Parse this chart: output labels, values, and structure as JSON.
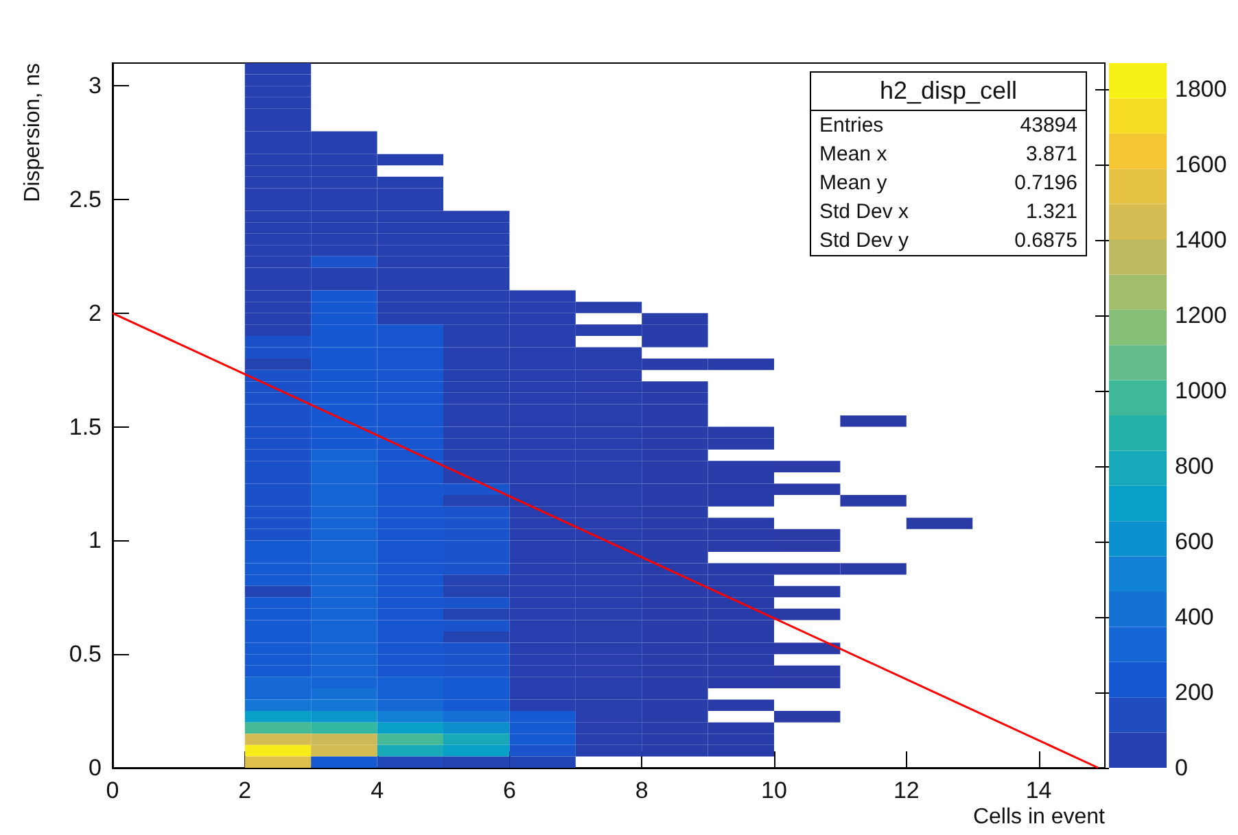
{
  "chart_data": {
    "type": "heatmap",
    "title": "h2_disp_cell",
    "xlabel": "Cells in event",
    "ylabel": "Dispersion, ns",
    "annotations": [
      "Entries 43894",
      "Mean x 3.871",
      "Mean y 0.7196",
      "Std Dev x 1.321",
      "Std Dev y 0.6875"
    ],
    "xlim": [
      0,
      15
    ],
    "xticks": [
      0,
      2,
      4,
      6,
      8,
      10,
      12,
      14
    ],
    "ylim": [
      0,
      3.1
    ],
    "yticks": [
      0,
      0.5,
      1,
      1.5,
      2,
      2.5,
      3
    ],
    "clim": [
      0,
      1870
    ],
    "cticks": [
      0,
      200,
      400,
      600,
      800,
      1000,
      1200,
      1400,
      1600,
      1800
    ],
    "x": [
      2.5,
      3.5,
      4.5,
      5.5,
      6.5,
      7.5,
      8.5,
      9.5,
      10.5,
      11.5,
      12.5
    ],
    "cells": [
      [
        50,
        null,
        null,
        null,
        null,
        null,
        null,
        null,
        null,
        null,
        null
      ],
      [
        50,
        null,
        null,
        null,
        null,
        null,
        null,
        null,
        null,
        null,
        null
      ],
      [
        50,
        null,
        null,
        null,
        null,
        null,
        null,
        null,
        null,
        null,
        null
      ],
      [
        50,
        null,
        null,
        null,
        null,
        null,
        null,
        null,
        null,
        null,
        null
      ],
      [
        50,
        null,
        null,
        null,
        null,
        null,
        null,
        null,
        null,
        null,
        null
      ],
      [
        50,
        null,
        null,
        null,
        null,
        null,
        null,
        null,
        null,
        null,
        null
      ],
      [
        50,
        50,
        null,
        null,
        null,
        null,
        null,
        null,
        null,
        null,
        null
      ],
      [
        50,
        50,
        null,
        null,
        null,
        null,
        null,
        null,
        null,
        null,
        null
      ],
      [
        50,
        50,
        50,
        null,
        null,
        null,
        null,
        null,
        null,
        null,
        null
      ],
      [
        50,
        50,
        null,
        null,
        null,
        null,
        null,
        null,
        null,
        null,
        null
      ],
      [
        50,
        50,
        50,
        null,
        null,
        null,
        null,
        null,
        null,
        null,
        null
      ],
      [
        50,
        50,
        50,
        null,
        null,
        null,
        null,
        null,
        null,
        null,
        null
      ],
      [
        50,
        50,
        50,
        null,
        null,
        null,
        null,
        null,
        null,
        null,
        null
      ],
      [
        50,
        50,
        50,
        50,
        null,
        null,
        null,
        null,
        null,
        null,
        null
      ],
      [
        50,
        50,
        50,
        50,
        null,
        null,
        null,
        null,
        null,
        null,
        null
      ],
      [
        50,
        50,
        50,
        50,
        null,
        null,
        null,
        null,
        null,
        null,
        null
      ],
      [
        50,
        50,
        50,
        50,
        null,
        null,
        null,
        null,
        null,
        null,
        null
      ],
      [
        50,
        200,
        50,
        50,
        null,
        null,
        null,
        null,
        null,
        null,
        null
      ],
      [
        50,
        50,
        50,
        50,
        null,
        null,
        null,
        null,
        null,
        null,
        null
      ],
      [
        50,
        50,
        50,
        50,
        null,
        null,
        null,
        null,
        null,
        null,
        null
      ],
      [
        50,
        230,
        50,
        50,
        40,
        null,
        null,
        null,
        null,
        null,
        null
      ],
      [
        50,
        230,
        50,
        50,
        40,
        30,
        null,
        null,
        null,
        null,
        null
      ],
      [
        50,
        230,
        50,
        50,
        40,
        null,
        20,
        null,
        null,
        null,
        null
      ],
      [
        50,
        230,
        220,
        50,
        40,
        30,
        20,
        null,
        null,
        null,
        null
      ],
      [
        180,
        230,
        220,
        50,
        40,
        null,
        20,
        null,
        null,
        null,
        null
      ],
      [
        180,
        230,
        220,
        50,
        40,
        30,
        null,
        null,
        null,
        null,
        null
      ],
      [
        60,
        230,
        220,
        50,
        40,
        30,
        20,
        10,
        null,
        null,
        null
      ],
      [
        180,
        230,
        220,
        50,
        40,
        30,
        null,
        null,
        null,
        null,
        null
      ],
      [
        180,
        230,
        220,
        50,
        40,
        30,
        20,
        null,
        null,
        null,
        null
      ],
      [
        180,
        230,
        220,
        50,
        40,
        30,
        20,
        null,
        null,
        null,
        null
      ],
      [
        180,
        230,
        220,
        50,
        40,
        30,
        20,
        null,
        null,
        null,
        null
      ],
      [
        180,
        230,
        220,
        50,
        40,
        30,
        20,
        null,
        null,
        2,
        null
      ],
      [
        180,
        230,
        220,
        50,
        40,
        30,
        20,
        10,
        null,
        null,
        null
      ],
      [
        180,
        230,
        220,
        50,
        40,
        30,
        20,
        10,
        null,
        null,
        null
      ],
      [
        180,
        320,
        220,
        50,
        40,
        30,
        20,
        null,
        null,
        null,
        null
      ],
      [
        180,
        320,
        220,
        50,
        40,
        30,
        20,
        10,
        5,
        null,
        null
      ],
      [
        180,
        320,
        220,
        50,
        40,
        30,
        20,
        10,
        null,
        null,
        null
      ],
      [
        180,
        320,
        220,
        200,
        40,
        30,
        20,
        10,
        5,
        null,
        null
      ],
      [
        180,
        320,
        220,
        60,
        40,
        30,
        20,
        10,
        null,
        2,
        null
      ],
      [
        180,
        320,
        220,
        200,
        40,
        30,
        20,
        null,
        null,
        null,
        null
      ],
      [
        180,
        320,
        220,
        200,
        40,
        30,
        20,
        10,
        null,
        null,
        1
      ],
      [
        180,
        320,
        220,
        200,
        40,
        30,
        20,
        10,
        5,
        null,
        null
      ],
      [
        250,
        320,
        220,
        200,
        40,
        30,
        20,
        10,
        5,
        null,
        null
      ],
      [
        250,
        320,
        220,
        200,
        40,
        30,
        20,
        null,
        null,
        null,
        null
      ],
      [
        250,
        320,
        220,
        200,
        40,
        30,
        20,
        10,
        5,
        2,
        null
      ],
      [
        250,
        320,
        220,
        60,
        40,
        30,
        20,
        10,
        null,
        null,
        null
      ],
      [
        80,
        320,
        220,
        60,
        40,
        30,
        20,
        10,
        5,
        null,
        null
      ],
      [
        250,
        320,
        220,
        200,
        40,
        30,
        20,
        10,
        null,
        null,
        null
      ],
      [
        250,
        320,
        220,
        60,
        40,
        30,
        20,
        10,
        5,
        null,
        null
      ],
      [
        250,
        320,
        220,
        200,
        40,
        30,
        20,
        10,
        null,
        null,
        null
      ],
      [
        250,
        320,
        220,
        60,
        40,
        30,
        20,
        10,
        null,
        null,
        null
      ],
      [
        250,
        320,
        220,
        200,
        40,
        30,
        20,
        10,
        5,
        null,
        null
      ],
      [
        250,
        320,
        220,
        200,
        40,
        30,
        20,
        10,
        null,
        null,
        null
      ],
      [
        250,
        320,
        220,
        200,
        40,
        30,
        20,
        10,
        5,
        null,
        null
      ],
      [
        350,
        320,
        300,
        250,
        40,
        30,
        20,
        10,
        5,
        null,
        null
      ],
      [
        350,
        400,
        300,
        250,
        40,
        30,
        20,
        null,
        null,
        null,
        null
      ],
      [
        450,
        450,
        350,
        250,
        40,
        30,
        20,
        10,
        null,
        null,
        null
      ],
      [
        700,
        650,
        500,
        400,
        250,
        30,
        20,
        null,
        5,
        null,
        null
      ],
      [
        1000,
        950,
        700,
        600,
        250,
        30,
        20,
        10,
        null,
        null,
        null
      ],
      [
        1450,
        1400,
        1000,
        800,
        250,
        30,
        20,
        10,
        null,
        null,
        null
      ],
      [
        1800,
        1450,
        800,
        700,
        200,
        30,
        20,
        10,
        null,
        null,
        null
      ],
      [
        1500,
        250,
        100,
        60,
        80,
        null,
        null,
        null,
        null,
        null,
        null
      ]
    ],
    "series": [
      {
        "type": "line",
        "color": "#ff0000",
        "x": [
          0,
          14.9
        ],
        "values": [
          2,
          0
        ]
      }
    ]
  }
}
